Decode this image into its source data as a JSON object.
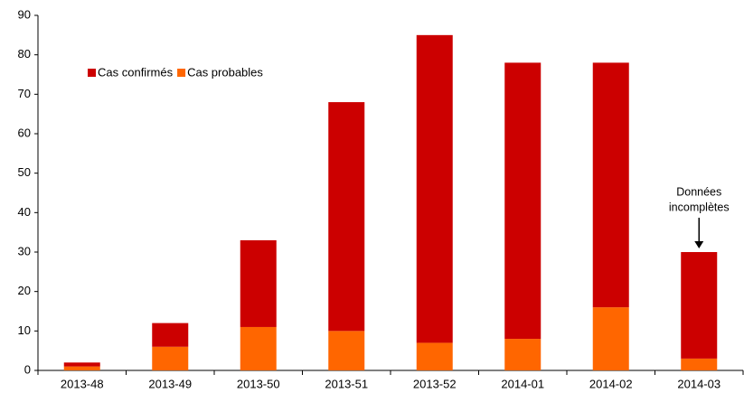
{
  "chart_data": {
    "type": "stacked_bar",
    "categories": [
      "2013-48",
      "2013-49",
      "2013-50",
      "2013-51",
      "2013-52",
      "2014-01",
      "2014-02",
      "2014-03"
    ],
    "series": [
      {
        "name": "Cas confirmés",
        "color": "#cc0000",
        "values": [
          1,
          6,
          22,
          58,
          78,
          70,
          62,
          27
        ]
      },
      {
        "name": "Cas probables",
        "color": "#ff6600",
        "values": [
          1,
          6,
          11,
          10,
          7,
          8,
          16,
          3
        ]
      }
    ],
    "ylim": [
      0,
      90
    ],
    "yticks": [
      0,
      10,
      20,
      30,
      40,
      50,
      60,
      70,
      80,
      90
    ],
    "grid": false,
    "legend": "top-left",
    "annotation": [
      "Données",
      "incomplètes"
    ]
  }
}
